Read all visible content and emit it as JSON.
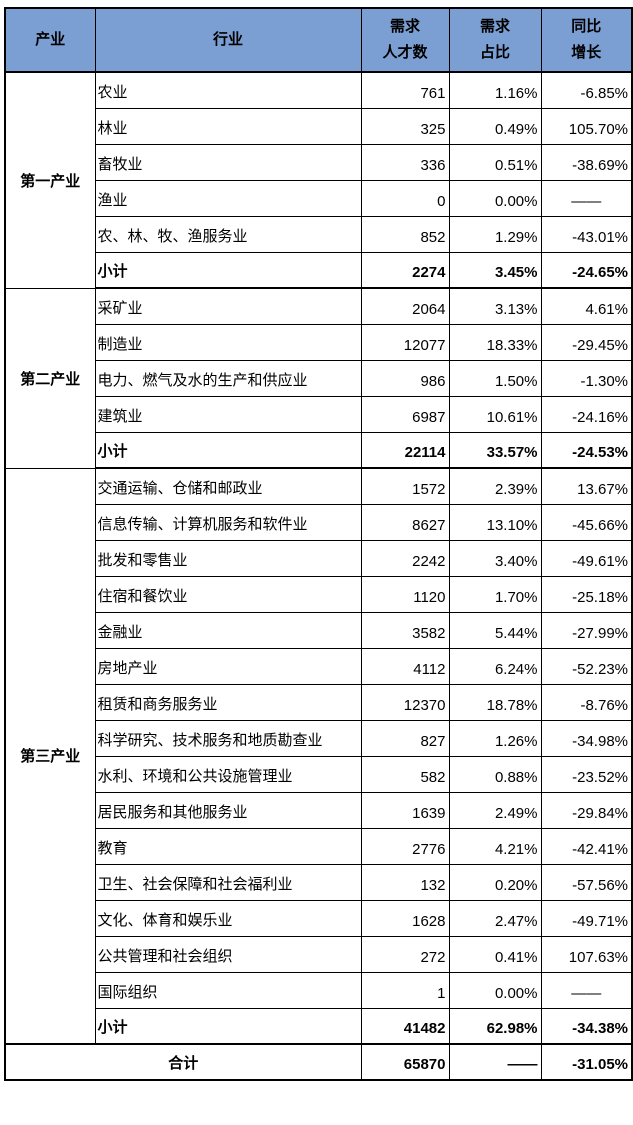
{
  "colors": {
    "header_bg": "#7C9FD3",
    "border": "#000000",
    "text": "#000000"
  },
  "chart_data": {
    "type": "table",
    "columns": [
      "产业",
      "行业",
      "需求人才数",
      "需求占比",
      "同比增长"
    ],
    "columns_display": [
      "产业",
      "行业",
      "需求\n人才数",
      "需求\n占比",
      "同比\n增长"
    ],
    "sections": [
      {
        "industry": "第一产业",
        "rows": [
          {
            "sector": "农业",
            "demand": "761",
            "share": "1.16%",
            "growth": "-6.85%"
          },
          {
            "sector": "林业",
            "demand": "325",
            "share": "0.49%",
            "growth": "105.70%"
          },
          {
            "sector": "畜牧业",
            "demand": "336",
            "share": "0.51%",
            "growth": "-38.69%"
          },
          {
            "sector": "渔业",
            "demand": "0",
            "share": "0.00%",
            "growth": "——",
            "growth_center": true
          },
          {
            "sector": "农、林、牧、渔服务业",
            "demand": "852",
            "share": "1.29%",
            "growth": "-43.01%"
          },
          {
            "sector": "小计",
            "demand": "2274",
            "share": "3.45%",
            "growth": "-24.65%",
            "subtotal": true
          }
        ]
      },
      {
        "industry": "第二产业",
        "rows": [
          {
            "sector": "采矿业",
            "demand": "2064",
            "share": "3.13%",
            "growth": "4.61%"
          },
          {
            "sector": "制造业",
            "demand": "12077",
            "share": "18.33%",
            "growth": "-29.45%"
          },
          {
            "sector": "电力、燃气及水的生产和供应业",
            "demand": "986",
            "share": "1.50%",
            "growth": "-1.30%"
          },
          {
            "sector": "建筑业",
            "demand": "6987",
            "share": "10.61%",
            "growth": "-24.16%"
          },
          {
            "sector": "小计",
            "demand": "22114",
            "share": "33.57%",
            "growth": "-24.53%",
            "subtotal": true
          }
        ]
      },
      {
        "industry": "第三产业",
        "rows": [
          {
            "sector": "交通运输、仓储和邮政业",
            "demand": "1572",
            "share": "2.39%",
            "growth": "13.67%"
          },
          {
            "sector": "信息传输、计算机服务和软件业",
            "demand": "8627",
            "share": "13.10%",
            "growth": "-45.66%"
          },
          {
            "sector": "批发和零售业",
            "demand": "2242",
            "share": "3.40%",
            "growth": "-49.61%"
          },
          {
            "sector": "住宿和餐饮业",
            "demand": "1120",
            "share": "1.70%",
            "growth": "-25.18%"
          },
          {
            "sector": "金融业",
            "demand": "3582",
            "share": "5.44%",
            "growth": "-27.99%"
          },
          {
            "sector": "房地产业",
            "demand": "4112",
            "share": "6.24%",
            "growth": "-52.23%"
          },
          {
            "sector": "租赁和商务服务业",
            "demand": "12370",
            "share": "18.78%",
            "growth": "-8.76%"
          },
          {
            "sector": "科学研究、技术服务和地质勘查业",
            "demand": "827",
            "share": "1.26%",
            "growth": "-34.98%"
          },
          {
            "sector": "水利、环境和公共设施管理业",
            "demand": "582",
            "share": "0.88%",
            "growth": "-23.52%"
          },
          {
            "sector": "居民服务和其他服务业",
            "demand": "1639",
            "share": "2.49%",
            "growth": "-29.84%"
          },
          {
            "sector": "教育",
            "demand": "2776",
            "share": "4.21%",
            "growth": "-42.41%"
          },
          {
            "sector": "卫生、社会保障和社会福利业",
            "demand": "132",
            "share": "0.20%",
            "growth": "-57.56%"
          },
          {
            "sector": "文化、体育和娱乐业",
            "demand": "1628",
            "share": "2.47%",
            "growth": "-49.71%"
          },
          {
            "sector": "公共管理和社会组织",
            "demand": "272",
            "share": "0.41%",
            "growth": "107.63%"
          },
          {
            "sector": "国际组织",
            "demand": "1",
            "share": "0.00%",
            "growth": "——",
            "growth_center": true
          },
          {
            "sector": "小计",
            "demand": "41482",
            "share": "62.98%",
            "growth": "-34.38%",
            "subtotal": true
          }
        ]
      }
    ],
    "total_row": {
      "label": "合计",
      "demand": "65870",
      "share": "——",
      "growth": "-31.05%"
    }
  }
}
